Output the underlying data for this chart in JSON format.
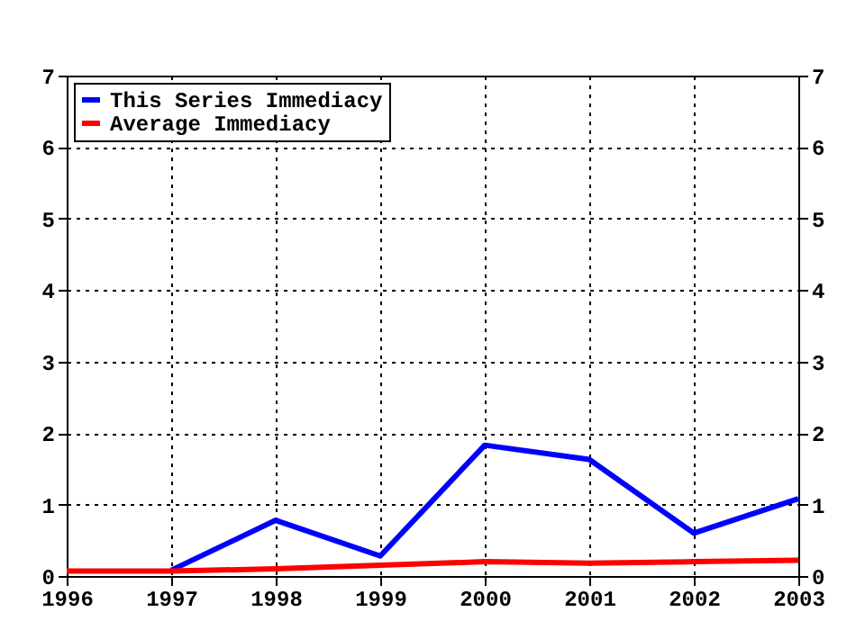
{
  "chart_data": {
    "type": "line",
    "x": [
      1996,
      1997,
      1998,
      1999,
      2000,
      2001,
      2002,
      2003
    ],
    "series": [
      {
        "name": "This Series Immediacy",
        "color": "#0000ff",
        "values": [
          null,
          0.08,
          0.78,
          0.28,
          1.83,
          1.63,
          0.6,
          1.08
        ]
      },
      {
        "name": "Average Immediacy",
        "color": "#ff0000",
        "values": [
          0.07,
          0.07,
          0.1,
          0.15,
          0.2,
          0.18,
          0.2,
          0.22
        ]
      }
    ],
    "xlim": [
      1996,
      2003
    ],
    "xticks": [
      1996,
      1997,
      1998,
      1999,
      2000,
      2001,
      2002,
      2003
    ],
    "ylim": [
      0,
      7
    ],
    "yticks": [
      0,
      1,
      2,
      3,
      4,
      5,
      6,
      7
    ],
    "y2lim": [
      0,
      7
    ],
    "y2ticks": [
      0,
      1,
      2,
      3,
      4,
      5,
      6,
      7
    ],
    "grid": true,
    "legend": "top left",
    "marker": "none",
    "line_style": "solid"
  }
}
